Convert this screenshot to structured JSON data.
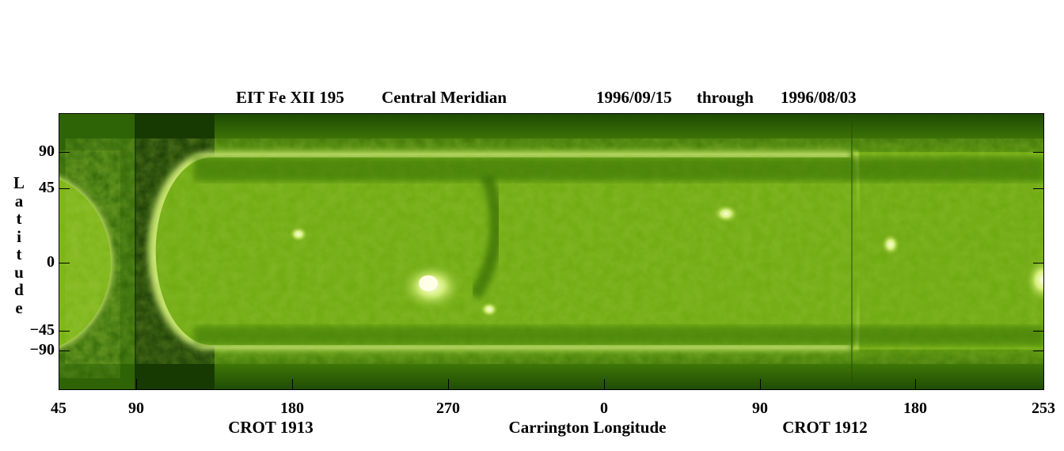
{
  "title": {
    "instrument": "EIT Fe XII 195",
    "view": "Central Meridian",
    "date_start": "1996/09/15",
    "through": "through",
    "date_end": "1996/08/03"
  },
  "y_axis": {
    "label_letters": [
      "L",
      "a",
      "t",
      "i",
      "t",
      "u",
      "d",
      "e"
    ],
    "ticks": [
      "90",
      "45",
      "0",
      "−45",
      "−90"
    ]
  },
  "x_axis": {
    "ticks": [
      "45",
      "90",
      "180",
      "270",
      "0",
      "90",
      "180",
      "253"
    ],
    "label": "Carrington Longitude"
  },
  "rotations": {
    "left": "CROT 1913",
    "right": "CROT 1912"
  },
  "colors": {
    "background": "#ffffff",
    "corona_base": "#6aa10d",
    "corona_bright": "#d9f27a",
    "corona_dark": "#0d2a02"
  }
}
